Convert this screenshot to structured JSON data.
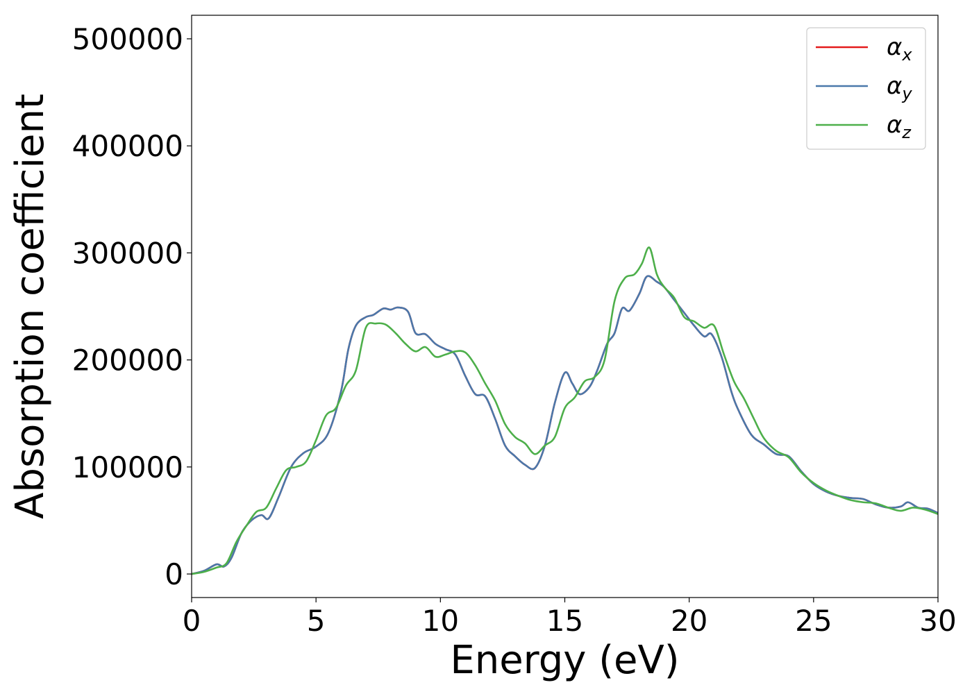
{
  "chart_data": {
    "type": "line",
    "title": "",
    "xlabel": "Energy (eV)",
    "ylabel": "Absorption coefficient",
    "xlim": [
      0,
      30
    ],
    "ylim": [
      -22000,
      522000
    ],
    "xticks": [
      0,
      5,
      10,
      15,
      20,
      25,
      30
    ],
    "yticks": [
      0,
      100000,
      200000,
      300000,
      400000,
      500000
    ],
    "xtick_labels": [
      "0",
      "5",
      "10",
      "15",
      "20",
      "25",
      "30"
    ],
    "ytick_labels": [
      "0",
      "100000",
      "200000",
      "300000",
      "400000",
      "500000"
    ],
    "grid": false,
    "legend_position": "top-right",
    "series": [
      {
        "name": "α",
        "subscript": "x",
        "color": "#e41a1c",
        "x": [
          0,
          0.5,
          1.0,
          1.3,
          1.6,
          2.0,
          2.4,
          2.8,
          3.1,
          3.5,
          4.0,
          4.5,
          5.0,
          5.5,
          6.0,
          6.3,
          6.6,
          7.0,
          7.3,
          7.7,
          8.0,
          8.3,
          8.7,
          9.0,
          9.4,
          9.8,
          10.2,
          10.6,
          11.0,
          11.4,
          11.8,
          12.2,
          12.6,
          13.0,
          13.4,
          13.8,
          14.2,
          14.6,
          15.0,
          15.3,
          15.6,
          16.0,
          16.3,
          16.7,
          17.0,
          17.3,
          17.6,
          18.0,
          18.3,
          18.7,
          19.0,
          19.4,
          19.8,
          20.2,
          20.6,
          20.9,
          21.3,
          21.7,
          22.0,
          22.5,
          23.0,
          23.5,
          24.0,
          24.5,
          25.0,
          25.5,
          26.0,
          26.5,
          27.0,
          27.5,
          28.0,
          28.5,
          28.8,
          29.2,
          29.6,
          30.0
        ],
        "values": [
          0,
          3000,
          9000,
          7000,
          15000,
          38000,
          50000,
          55000,
          52000,
          72000,
          100000,
          113000,
          119000,
          132000,
          170000,
          210000,
          232000,
          240000,
          242000,
          248000,
          247000,
          249000,
          245000,
          225000,
          224000,
          215000,
          210000,
          205000,
          185000,
          168000,
          166000,
          145000,
          120000,
          110000,
          102000,
          99000,
          120000,
          160000,
          188000,
          178000,
          168000,
          175000,
          190000,
          215000,
          225000,
          248000,
          246000,
          262000,
          278000,
          273000,
          268000,
          256000,
          244000,
          232000,
          222000,
          224000,
          203000,
          170000,
          152000,
          130000,
          121000,
          112000,
          110000,
          96000,
          84000,
          77000,
          73000,
          71000,
          70000,
          65000,
          62000,
          63000,
          67000,
          62000,
          61000,
          57000
        ]
      },
      {
        "name": "α",
        "subscript": "y",
        "color": "#4a78aa",
        "x": [
          0,
          0.5,
          1.0,
          1.3,
          1.6,
          2.0,
          2.4,
          2.8,
          3.1,
          3.5,
          4.0,
          4.5,
          5.0,
          5.5,
          6.0,
          6.3,
          6.6,
          7.0,
          7.3,
          7.7,
          8.0,
          8.3,
          8.7,
          9.0,
          9.4,
          9.8,
          10.2,
          10.6,
          11.0,
          11.4,
          11.8,
          12.2,
          12.6,
          13.0,
          13.4,
          13.8,
          14.2,
          14.6,
          15.0,
          15.3,
          15.6,
          16.0,
          16.3,
          16.7,
          17.0,
          17.3,
          17.6,
          18.0,
          18.3,
          18.7,
          19.0,
          19.4,
          19.8,
          20.2,
          20.6,
          20.9,
          21.3,
          21.7,
          22.0,
          22.5,
          23.0,
          23.5,
          24.0,
          24.5,
          25.0,
          25.5,
          26.0,
          26.5,
          27.0,
          27.5,
          28.0,
          28.5,
          28.8,
          29.2,
          29.6,
          30.0
        ],
        "values": [
          0,
          3000,
          9000,
          7000,
          15000,
          38000,
          50000,
          55000,
          52000,
          72000,
          100000,
          113000,
          119000,
          132000,
          170000,
          210000,
          232000,
          240000,
          242000,
          248000,
          247000,
          249000,
          245000,
          225000,
          224000,
          215000,
          210000,
          205000,
          185000,
          168000,
          166000,
          145000,
          120000,
          110000,
          102000,
          99000,
          120000,
          160000,
          188000,
          178000,
          168000,
          175000,
          190000,
          215000,
          225000,
          248000,
          246000,
          262000,
          278000,
          273000,
          268000,
          256000,
          244000,
          232000,
          222000,
          224000,
          203000,
          170000,
          152000,
          130000,
          121000,
          112000,
          110000,
          96000,
          84000,
          77000,
          73000,
          71000,
          70000,
          65000,
          62000,
          63000,
          67000,
          62000,
          61000,
          57000
        ]
      },
      {
        "name": "α",
        "subscript": "z",
        "color": "#4daf4a",
        "x": [
          0,
          0.5,
          1.0,
          1.4,
          1.8,
          2.2,
          2.6,
          3.0,
          3.4,
          3.8,
          4.2,
          4.6,
          5.0,
          5.4,
          5.8,
          6.2,
          6.6,
          7.0,
          7.4,
          7.8,
          8.2,
          8.6,
          9.0,
          9.4,
          9.8,
          10.2,
          10.6,
          11.0,
          11.4,
          11.8,
          12.2,
          12.6,
          13.0,
          13.4,
          13.8,
          14.2,
          14.6,
          15.0,
          15.4,
          15.8,
          16.2,
          16.6,
          17.0,
          17.4,
          17.8,
          18.1,
          18.4,
          18.7,
          19.0,
          19.4,
          19.8,
          20.2,
          20.6,
          21.0,
          21.4,
          21.8,
          22.2,
          22.6,
          23.0,
          23.5,
          24.0,
          24.5,
          25.0,
          25.5,
          26.0,
          26.5,
          27.0,
          27.5,
          28.0,
          28.5,
          29.0,
          29.5,
          30.0
        ],
        "values": [
          0,
          2000,
          6000,
          10000,
          30000,
          45000,
          58000,
          62000,
          80000,
          97000,
          100000,
          105000,
          125000,
          148000,
          155000,
          176000,
          190000,
          230000,
          234000,
          233000,
          225000,
          215000,
          208000,
          212000,
          203000,
          205000,
          208000,
          207000,
          195000,
          178000,
          162000,
          140000,
          128000,
          122000,
          112000,
          120000,
          128000,
          155000,
          165000,
          180000,
          184000,
          200000,
          255000,
          276000,
          280000,
          290000,
          305000,
          280000,
          268000,
          258000,
          240000,
          236000,
          230000,
          232000,
          205000,
          180000,
          164000,
          145000,
          127000,
          115000,
          109000,
          95000,
          85000,
          78000,
          73000,
          69000,
          67000,
          66000,
          62000,
          59000,
          62000,
          60000,
          56000
        ]
      }
    ]
  }
}
